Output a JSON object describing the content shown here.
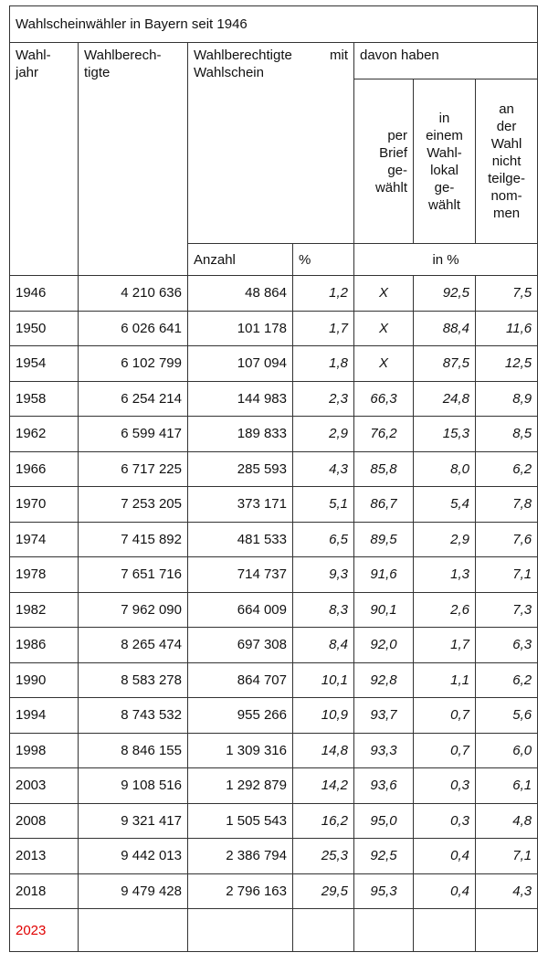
{
  "title": "Wahlscheinwähler in Bayern seit 1946",
  "header": {
    "year": "Wahl-\njahr",
    "eligible": "Wahlberech-\ntigte",
    "with_ballot": "Wahlberechtigte mit Wahlschein",
    "of_which": "davon haben",
    "by_mail": "per\nBrief\nge-\nwählt",
    "at_polling": "in\neinem\nWahl-\nlokal\nge-\nwählt",
    "not_voted": "an\nder\nWahl\nnicht\nteilge-\nnom-\nmen",
    "count": "Anzahl",
    "percent": "%",
    "in_percent": "in %"
  },
  "table": {
    "rows": [
      [
        "1946",
        "4 210 636",
        "48 864",
        "1,2",
        "X",
        "92,5",
        "7,5"
      ],
      [
        "1950",
        "6 026 641",
        "101 178",
        "1,7",
        "X",
        "88,4",
        "11,6"
      ],
      [
        "1954",
        "6 102 799",
        "107 094",
        "1,8",
        "X",
        "87,5",
        "12,5"
      ],
      [
        "1958",
        "6 254 214",
        "144 983",
        "2,3",
        "66,3",
        "24,8",
        "8,9"
      ],
      [
        "1962",
        "6 599 417",
        "189 833",
        "2,9",
        "76,2",
        "15,3",
        "8,5"
      ],
      [
        "1966",
        "6 717 225",
        "285 593",
        "4,3",
        "85,8",
        "8,0",
        "6,2"
      ],
      [
        "1970",
        "7 253 205",
        "373 171",
        "5,1",
        "86,7",
        "5,4",
        "7,8"
      ],
      [
        "1974",
        "7 415 892",
        "481 533",
        "6,5",
        "89,5",
        "2,9",
        "7,6"
      ],
      [
        "1978",
        "7 651 716",
        "714 737",
        "9,3",
        "91,6",
        "1,3",
        "7,1"
      ],
      [
        "1982",
        "7 962 090",
        "664 009",
        "8,3",
        "90,1",
        "2,6",
        "7,3"
      ],
      [
        "1986",
        "8 265 474",
        "697 308",
        "8,4",
        "92,0",
        "1,7",
        "6,3"
      ],
      [
        "1990",
        "8 583 278",
        "864 707",
        "10,1",
        "92,8",
        "1,1",
        "6,2"
      ],
      [
        "1994",
        "8 743 532",
        "955 266",
        "10,9",
        "93,7",
        "0,7",
        "5,6"
      ],
      [
        "1998",
        "8 846 155",
        "1 309 316",
        "14,8",
        "93,3",
        "0,7",
        "6,0"
      ],
      [
        "2003",
        "9 108 516",
        "1 292 879",
        "14,2",
        "93,6",
        "0,3",
        "6,1"
      ],
      [
        "2008",
        "9 321 417",
        "1 505 543",
        "16,2",
        "95,0",
        "0,3",
        "4,8"
      ],
      [
        "2013",
        "9 442 013",
        "2 386 794",
        "25,3",
        "92,5",
        "0,4",
        "7,1"
      ],
      [
        "2018",
        "9 479 428",
        "2 796 163",
        "29,5",
        "95,3",
        "0,4",
        "4,3"
      ],
      [
        "2023"
      ]
    ]
  }
}
